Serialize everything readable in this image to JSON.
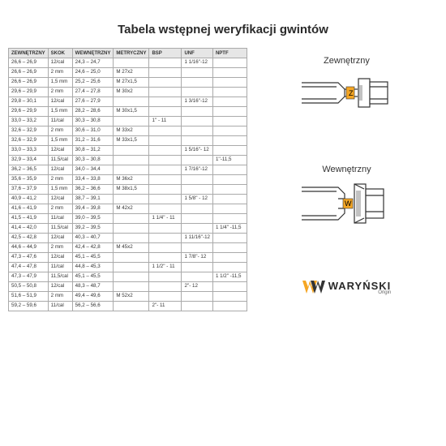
{
  "title": "Tabela wstępnej weryfikacji gwintów",
  "columns": [
    "ZEWNĘTRZNY",
    "SKOK",
    "WEWNĘTRZNY",
    "METRYCZNY",
    "BSP",
    "UNF",
    "NPTF"
  ],
  "rows": [
    [
      "26,6 – 26,9",
      "12/cal",
      "24,3 – 24,7",
      "",
      "",
      "1 1/16''-12",
      ""
    ],
    [
      "26,6 – 26,9",
      "2 mm",
      "24,6 – 25,0",
      "M 27x2",
      "",
      "",
      ""
    ],
    [
      "26,6 – 26,9",
      "1,5 mm",
      "25,2 – 25,6",
      "M 27x1,5",
      "",
      "",
      ""
    ],
    [
      "29,6 – 29,9",
      "2 mm",
      "27,4 – 27,8",
      "M 30x2",
      "",
      "",
      ""
    ],
    [
      "29,8 – 30,1",
      "12/cal",
      "27,6 – 27,9",
      "",
      "",
      "1 3/16''-12",
      ""
    ],
    [
      "29,6 – 29,9",
      "1,5 mm",
      "28,2 – 28,6",
      "M 30x1,5",
      "",
      "",
      ""
    ],
    [
      "33,0 – 33,2",
      "11/cal",
      "30,3 – 30,8",
      "",
      "1'' - 11",
      "",
      ""
    ],
    [
      "32,6 – 32,9",
      "2 mm",
      "30,6 – 31,0",
      "M 33x2",
      "",
      "",
      ""
    ],
    [
      "32,6 – 32,9",
      "1,5 mm",
      "31,2 – 31,6",
      "M 33x1,5",
      "",
      "",
      ""
    ],
    [
      "33,0 – 33,3",
      "12/cal",
      "30,8 – 31,2",
      "",
      "",
      "1 5/16''- 12",
      ""
    ],
    [
      "32,9 – 33,4",
      "11,5/cal",
      "30,3 – 30,8",
      "",
      "",
      "",
      "1''-11,5"
    ],
    [
      "36,2 – 36,5",
      "12/cal",
      "34,0 – 34,4",
      "",
      "",
      "1 7/16''-12",
      ""
    ],
    [
      "35,6 – 35,9",
      "2 mm",
      "33,4 – 33,8",
      "M 36x2",
      "",
      "",
      ""
    ],
    [
      "37,6 – 37,9",
      "1,5 mm",
      "36,2 – 36,6",
      "M 38x1,5",
      "",
      "",
      ""
    ],
    [
      "40,9 – 41,2",
      "12/cal",
      "38,7 – 39,1",
      "",
      "",
      "1 5/8'' - 12",
      ""
    ],
    [
      "41,6 – 41,9",
      "2 mm",
      "39,4 – 39,8",
      "M 42x2",
      "",
      "",
      ""
    ],
    [
      "41,5 – 41,9",
      "11/cal",
      "39,0 – 39,5",
      "",
      "1 1/4'' - 11",
      "",
      ""
    ],
    [
      "41,4 – 42,0",
      "11,5/cal",
      "39,2 – 39,5",
      "",
      "",
      "",
      "1 1/4'' -11,5"
    ],
    [
      "42,5 – 42,8",
      "12/cal",
      "40,3 – 40,7",
      "",
      "",
      "1 11/16''-12",
      ""
    ],
    [
      "44,6 – 44,9",
      "2 mm",
      "42,4 – 42,8",
      "M 45x2",
      "",
      "",
      ""
    ],
    [
      "47,3 – 47,6",
      "12/cal",
      "45,1 – 45,5",
      "",
      "",
      "1 7/8''- 12",
      ""
    ],
    [
      "47,4 – 47,8",
      "11/cal",
      "44,8 – 45,3",
      "",
      "1 1/2'' - 11",
      "",
      ""
    ],
    [
      "47,3 – 47,9",
      "11,5/cal",
      "45,1 – 45,5",
      "",
      "",
      "",
      "1 1/2'' -11,5"
    ],
    [
      "50,5 – 50,8",
      "12/cal",
      "48,3 – 48,7",
      "",
      "",
      "2''- 12",
      ""
    ],
    [
      "51,6 – 51,9",
      "2 mm",
      "49,4 – 49,6",
      "M 52x2",
      "",
      "",
      ""
    ],
    [
      "59,2 – 59,6",
      "11/cal",
      "56,2 – 56,6",
      "",
      "2''- 11",
      "",
      ""
    ]
  ],
  "diagram_outer": "Zewnętrzny",
  "diagram_inner": "Wewnętrzny",
  "logo_text": "WARYŃSKI",
  "logo_sub": "Origin",
  "brand_color": "#f5a623",
  "marker_z": "Z",
  "marker_w": "W"
}
